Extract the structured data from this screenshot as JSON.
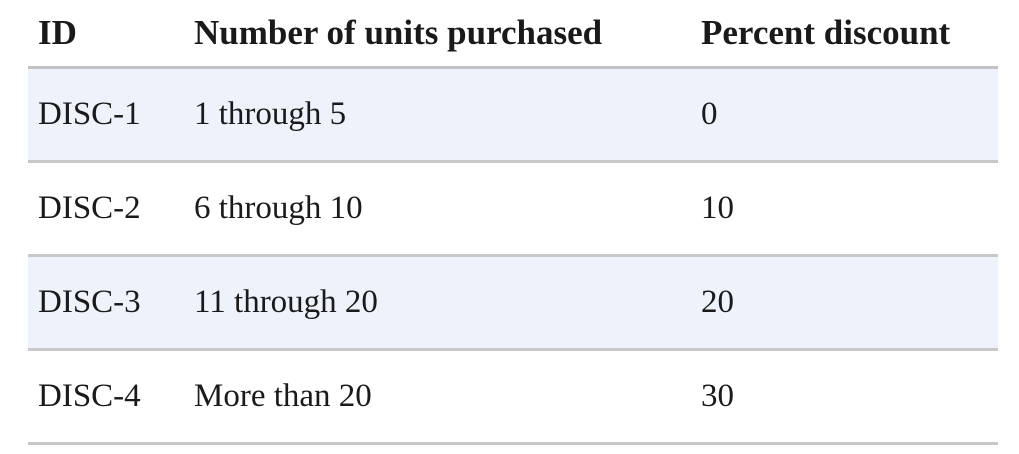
{
  "table": {
    "headers": [
      "ID",
      "Number of units purchased",
      "Percent discount"
    ],
    "rows": [
      [
        "DISC-1",
        "1 through 5",
        "0"
      ],
      [
        "DISC-2",
        "6 through 10",
        "10"
      ],
      [
        "DISC-3",
        "11 through 20",
        "20"
      ],
      [
        "DISC-4",
        "More than 20",
        "30"
      ]
    ]
  },
  "colors": {
    "alt_row_background": "#eef3fb",
    "rule": "#c8c8c8"
  }
}
